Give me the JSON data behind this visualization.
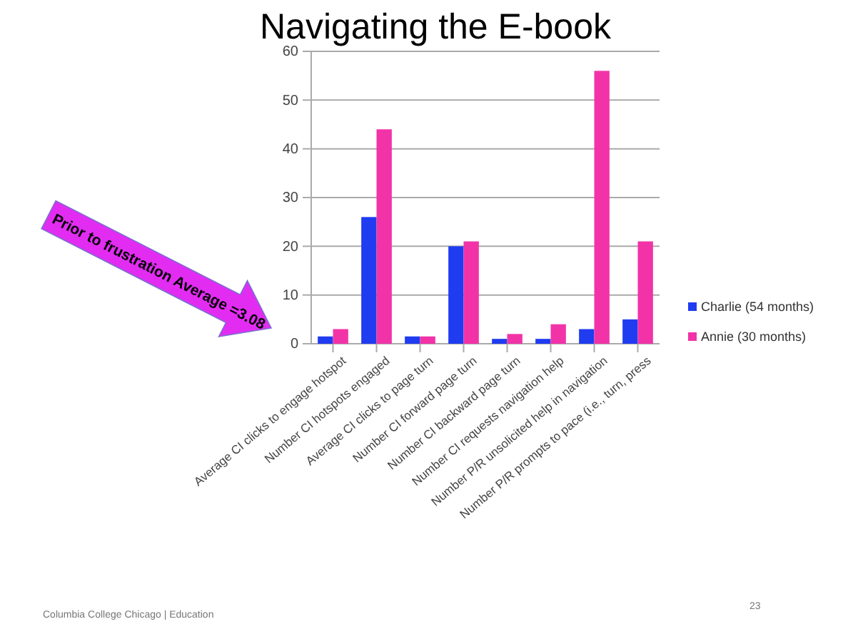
{
  "chart_data": {
    "type": "bar",
    "title": "Navigating the E-book",
    "categories": [
      "Average CI clicks to engage hotspot",
      "Number CI hotspots engaged",
      "Average CI clicks to page turn",
      "Number CI forward page turn",
      "Number CI backward page turn",
      "Number CI requests navigation help",
      "Number P/R unsolicited help in navigation",
      "Number P/R prompts to pace (i.e., turn, press"
    ],
    "series": [
      {
        "name": "Charlie (54 months)",
        "color": "#1f3cf0",
        "values": [
          1.5,
          26,
          1.5,
          20,
          1,
          1,
          3,
          5
        ]
      },
      {
        "name": "Annie (30 months)",
        "color": "#f233a8",
        "values": [
          3,
          44,
          1.5,
          21,
          2,
          4,
          56,
          21
        ]
      }
    ],
    "ylim": [
      0,
      60
    ],
    "yticks": [
      0,
      10,
      20,
      30,
      40,
      50,
      60
    ],
    "grid": "y",
    "legend": "right",
    "annotations": [
      "Prior to frustration Average =3.08",
      "Columbia College Chicago | Education",
      "23"
    ]
  }
}
